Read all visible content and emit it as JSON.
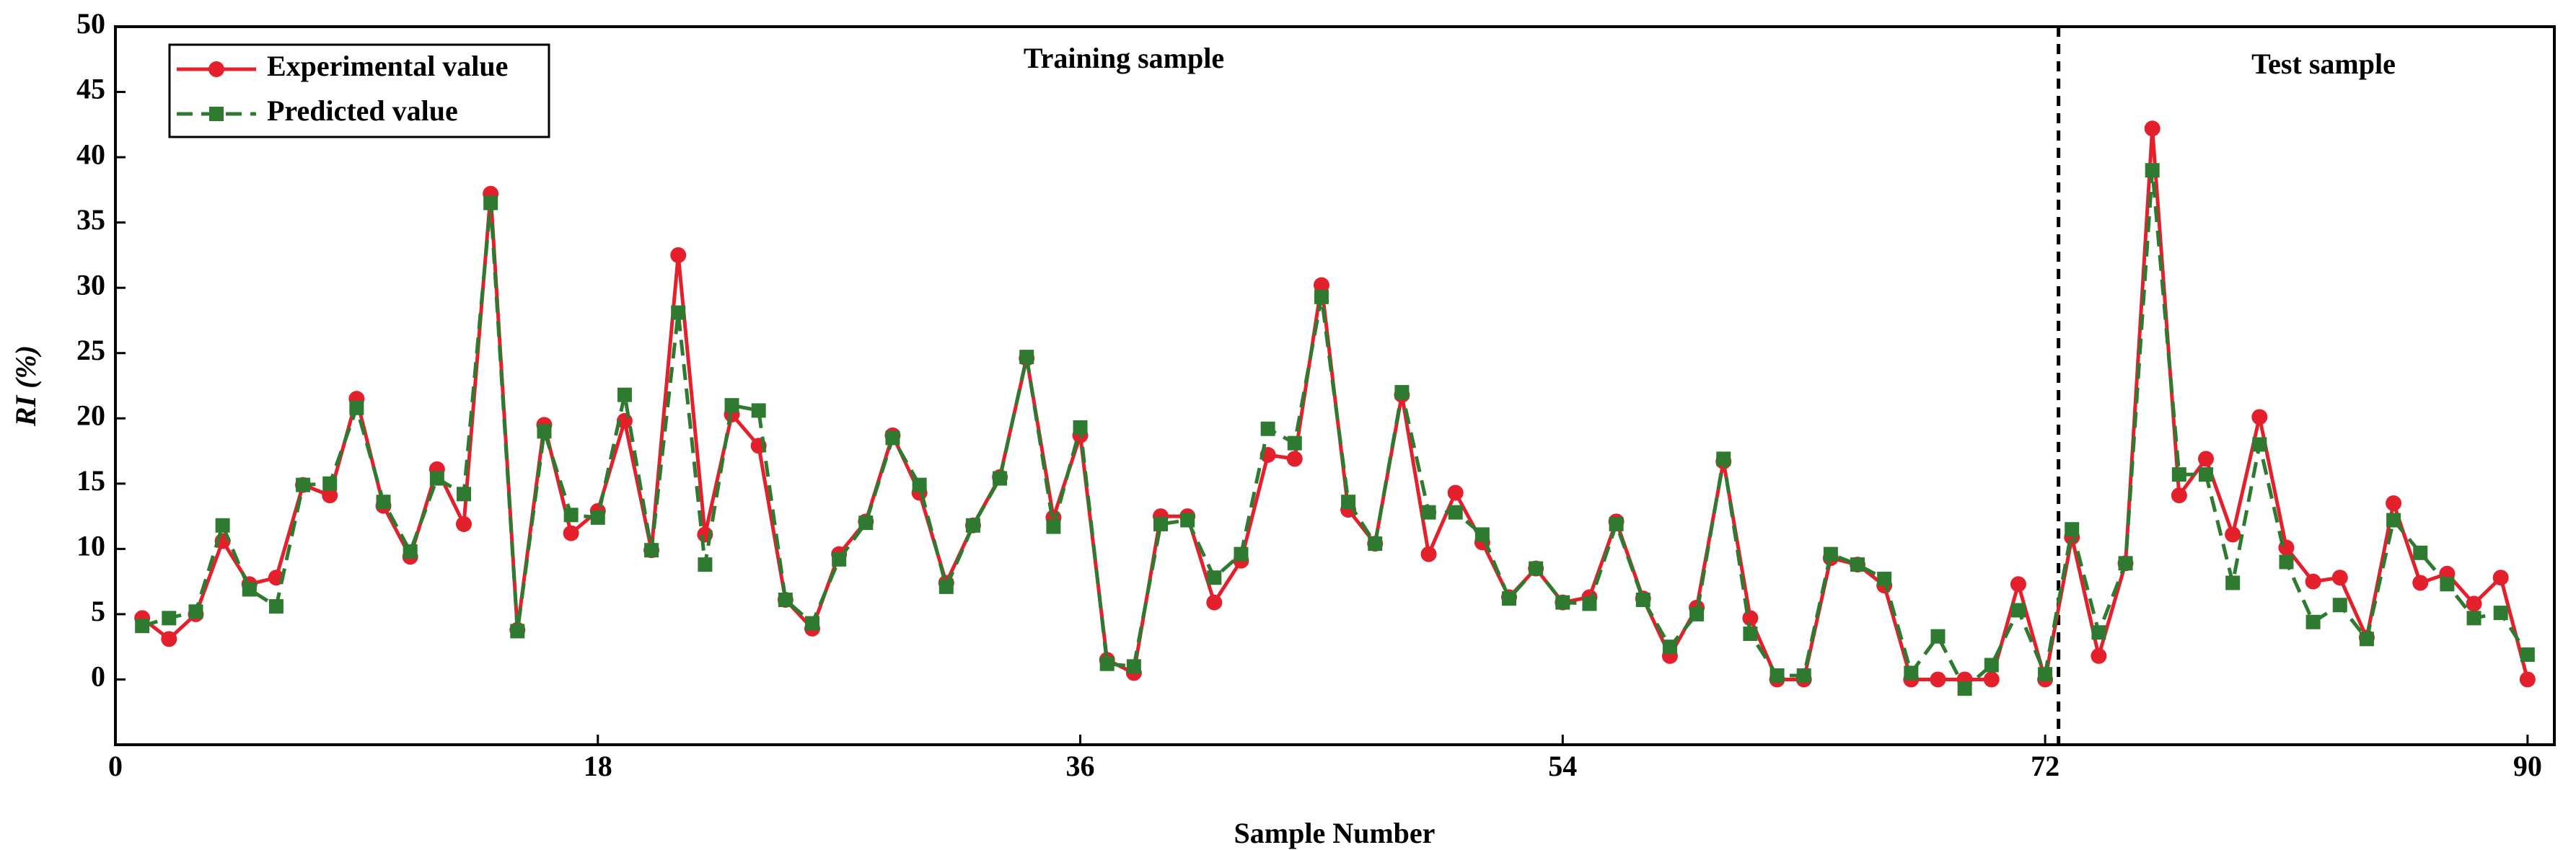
{
  "chart_data": {
    "type": "line",
    "xlabel": "Sample Number",
    "ylabel": "RI (%)",
    "annotations": [
      "Training sample",
      "Test sample"
    ],
    "x": [
      1,
      2,
      3,
      4,
      5,
      6,
      7,
      8,
      9,
      10,
      11,
      12,
      13,
      14,
      15,
      16,
      17,
      18,
      19,
      20,
      21,
      22,
      23,
      24,
      25,
      26,
      27,
      28,
      29,
      30,
      31,
      32,
      33,
      34,
      35,
      36,
      37,
      38,
      39,
      40,
      41,
      42,
      43,
      44,
      45,
      46,
      47,
      48,
      49,
      50,
      51,
      52,
      53,
      54,
      55,
      56,
      57,
      58,
      59,
      60,
      61,
      62,
      63,
      64,
      65,
      66,
      67,
      68,
      69,
      70,
      71,
      72,
      73,
      74,
      75,
      76,
      77,
      78,
      79,
      80,
      81,
      82,
      83,
      84,
      85,
      86,
      87,
      88,
      89,
      90
    ],
    "series": [
      {
        "name": "Experimental value",
        "color": "#e3202b",
        "marker": "circle",
        "dash": false,
        "values": [
          4.7,
          3.1,
          5.0,
          10.6,
          7.3,
          7.8,
          14.9,
          14.1,
          21.5,
          13.3,
          9.4,
          16.1,
          11.9,
          37.2,
          3.8,
          19.5,
          11.2,
          12.9,
          19.8,
          9.9,
          32.5,
          11.1,
          20.3,
          17.9,
          6.1,
          3.9,
          9.6,
          12.1,
          18.7,
          14.3,
          7.4,
          11.8,
          15.5,
          24.6,
          12.4,
          18.7,
          1.5,
          0.5,
          12.5,
          12.5,
          5.9,
          9.1,
          17.2,
          16.9,
          30.2,
          13.0,
          10.4,
          21.8,
          9.6,
          14.3,
          10.5,
          6.3,
          8.5,
          5.9,
          6.3,
          12.1,
          6.2,
          1.8,
          5.5,
          16.7,
          4.7,
          0.0,
          0.0,
          9.3,
          8.8,
          7.2,
          0.0,
          0.0,
          0.0,
          0.0,
          7.3,
          0.0,
          10.9,
          1.8,
          8.9,
          42.2,
          14.1,
          16.9,
          11.1,
          20.1,
          10.1,
          7.5,
          7.8,
          3.2,
          13.5,
          7.4,
          8.1,
          5.8,
          7.8,
          0.0
        ]
      },
      {
        "name": "Predicted value",
        "color": "#2e7a30",
        "marker": "square",
        "dash": true,
        "values": [
          4.1,
          4.7,
          5.2,
          11.8,
          6.9,
          5.6,
          14.9,
          15.0,
          20.8,
          13.6,
          9.8,
          15.4,
          14.2,
          36.5,
          3.7,
          19.0,
          12.6,
          12.4,
          21.8,
          9.9,
          28.1,
          8.8,
          21.0,
          20.6,
          6.1,
          4.3,
          9.2,
          12.0,
          18.5,
          14.9,
          7.1,
          11.8,
          15.4,
          24.7,
          11.7,
          19.3,
          1.2,
          1.0,
          11.9,
          12.2,
          7.8,
          9.6,
          19.2,
          18.1,
          29.3,
          13.6,
          10.4,
          22.0,
          12.8,
          12.8,
          11.1,
          6.2,
          8.5,
          5.9,
          5.8,
          11.9,
          6.1,
          2.5,
          5.0,
          16.9,
          3.5,
          0.3,
          0.3,
          9.6,
          8.8,
          7.7,
          0.5,
          3.3,
          -0.7,
          1.1,
          5.3,
          0.4,
          11.5,
          3.6,
          8.9,
          39.0,
          15.7,
          15.7,
          7.4,
          18.0,
          9.0,
          4.4,
          5.7,
          3.1,
          12.2,
          9.7,
          7.3,
          4.7,
          5.1,
          1.9
        ]
      }
    ],
    "xlim": [
      0,
      91
    ],
    "xticks": [
      0,
      18,
      36,
      54,
      72,
      90
    ],
    "ylim": [
      -5,
      50
    ],
    "yticks": [
      0,
      5,
      10,
      15,
      20,
      25,
      30,
      35,
      40,
      45,
      50
    ],
    "vlines": [
      72.5
    ],
    "legend": "upper left",
    "grid": false
  }
}
